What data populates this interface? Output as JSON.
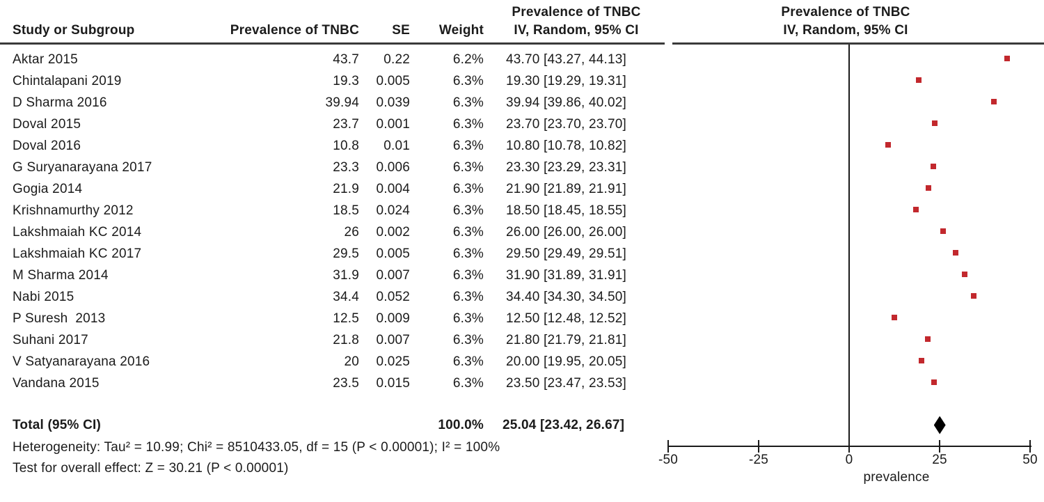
{
  "table": {
    "headers": {
      "study": "Study or Subgroup",
      "prevalence": "Prevalence of TNBC",
      "se": "SE",
      "weight": "Weight",
      "ci_line1": "Prevalence of TNBC",
      "ci_line2": "IV, Random, 95% CI"
    },
    "rows": [
      {
        "study": "Aktar 2015",
        "prevalence": "43.7",
        "se": "0.22",
        "weight": "6.2%",
        "ci": "43.70 [43.27, 44.13]"
      },
      {
        "study": "Chintalapani 2019",
        "prevalence": "19.3",
        "se": "0.005",
        "weight": "6.3%",
        "ci": "19.30 [19.29, 19.31]"
      },
      {
        "study": "D Sharma 2016",
        "prevalence": "39.94",
        "se": "0.039",
        "weight": "6.3%",
        "ci": "39.94 [39.86, 40.02]"
      },
      {
        "study": "Doval 2015",
        "prevalence": "23.7",
        "se": "0.001",
        "weight": "6.3%",
        "ci": "23.70 [23.70, 23.70]"
      },
      {
        "study": "Doval 2016",
        "prevalence": "10.8",
        "se": "0.01",
        "weight": "6.3%",
        "ci": "10.80 [10.78, 10.82]"
      },
      {
        "study": "G Suryanarayana 2017",
        "prevalence": "23.3",
        "se": "0.006",
        "weight": "6.3%",
        "ci": "23.30 [23.29, 23.31]"
      },
      {
        "study": "Gogia 2014",
        "prevalence": "21.9",
        "se": "0.004",
        "weight": "6.3%",
        "ci": "21.90 [21.89, 21.91]"
      },
      {
        "study": "Krishnamurthy 2012",
        "prevalence": "18.5",
        "se": "0.024",
        "weight": "6.3%",
        "ci": "18.50 [18.45, 18.55]"
      },
      {
        "study": "Lakshmaiah KC 2014",
        "prevalence": "26",
        "se": "0.002",
        "weight": "6.3%",
        "ci": "26.00 [26.00, 26.00]"
      },
      {
        "study": "Lakshmaiah KC 2017",
        "prevalence": "29.5",
        "se": "0.005",
        "weight": "6.3%",
        "ci": "29.50 [29.49, 29.51]"
      },
      {
        "study": "M Sharma 2014",
        "prevalence": "31.9",
        "se": "0.007",
        "weight": "6.3%",
        "ci": "31.90 [31.89, 31.91]"
      },
      {
        "study": "Nabi 2015",
        "prevalence": "34.4",
        "se": "0.052",
        "weight": "6.3%",
        "ci": "34.40 [34.30, 34.50]"
      },
      {
        "study": "P Suresh  2013",
        "prevalence": "12.5",
        "se": "0.009",
        "weight": "6.3%",
        "ci": "12.50 [12.48, 12.52]"
      },
      {
        "study": "Suhani 2017",
        "prevalence": "21.8",
        "se": "0.007",
        "weight": "6.3%",
        "ci": "21.80 [21.79, 21.81]"
      },
      {
        "study": "V Satyanarayana 2016",
        "prevalence": "20",
        "se": "0.025",
        "weight": "6.3%",
        "ci": "20.00 [19.95, 20.05]"
      },
      {
        "study": "Vandana 2015",
        "prevalence": "23.5",
        "se": "0.015",
        "weight": "6.3%",
        "ci": "23.50 [23.47, 23.53]"
      }
    ],
    "total": {
      "label": "Total (95% CI)",
      "weight": "100.0%",
      "ci": "25.04 [23.42, 26.67]"
    },
    "footnotes": {
      "heterogeneity": "Heterogeneity: Tau² = 10.99; Chi² = 8510433.05, df = 15 (P < 0.00001); I² = 100%",
      "overall_effect": "Test for overall effect: Z = 30.21 (P < 0.00001)"
    }
  },
  "plot": {
    "header_line1": "Prevalence of TNBC",
    "header_line2": "IV, Random, 95% CI"
  },
  "chart_data": {
    "type": "scatter",
    "subtype": "forest-plot",
    "xlabel": "prevalence",
    "xlim": [
      -50,
      50
    ],
    "x_ticks": [
      {
        "label": "-50",
        "value": -50
      },
      {
        "label": "-25",
        "value": -25
      },
      {
        "label": "0",
        "value": 0
      },
      {
        "label": "25",
        "value": 25
      },
      {
        "label": "50",
        "value": 50
      }
    ],
    "grid": false,
    "points": [
      {
        "study": "Aktar 2015",
        "value": 43.7,
        "ci_low": 43.27,
        "ci_high": 44.13
      },
      {
        "study": "Chintalapani 2019",
        "value": 19.3,
        "ci_low": 19.29,
        "ci_high": 19.31
      },
      {
        "study": "D Sharma 2016",
        "value": 39.94,
        "ci_low": 39.86,
        "ci_high": 40.02
      },
      {
        "study": "Doval 2015",
        "value": 23.7,
        "ci_low": 23.7,
        "ci_high": 23.7
      },
      {
        "study": "Doval 2016",
        "value": 10.8,
        "ci_low": 10.78,
        "ci_high": 10.82
      },
      {
        "study": "G Suryanarayana 2017",
        "value": 23.3,
        "ci_low": 23.29,
        "ci_high": 23.31
      },
      {
        "study": "Gogia 2014",
        "value": 21.9,
        "ci_low": 21.89,
        "ci_high": 21.91
      },
      {
        "study": "Krishnamurthy 2012",
        "value": 18.5,
        "ci_low": 18.45,
        "ci_high": 18.55
      },
      {
        "study": "Lakshmaiah KC 2014",
        "value": 26,
        "ci_low": 26,
        "ci_high": 26
      },
      {
        "study": "Lakshmaiah KC 2017",
        "value": 29.5,
        "ci_low": 29.49,
        "ci_high": 29.51
      },
      {
        "study": "M Sharma 2014",
        "value": 31.9,
        "ci_low": 31.89,
        "ci_high": 31.91
      },
      {
        "study": "Nabi 2015",
        "value": 34.4,
        "ci_low": 34.3,
        "ci_high": 34.5
      },
      {
        "study": "P Suresh  2013",
        "value": 12.5,
        "ci_low": 12.48,
        "ci_high": 12.52
      },
      {
        "study": "Suhani 2017",
        "value": 21.8,
        "ci_low": 21.79,
        "ci_high": 21.81
      },
      {
        "study": "V Satyanarayana 2016",
        "value": 20,
        "ci_low": 19.95,
        "ci_high": 20.05
      },
      {
        "study": "Vandana 2015",
        "value": 23.5,
        "ci_low": 23.47,
        "ci_high": 23.53
      }
    ],
    "diamond": {
      "label": "Total (95% CI)",
      "value": 25.04,
      "ci_low": 23.42,
      "ci_high": 26.67
    }
  },
  "colors": {
    "marker": "#c2282d",
    "diamond": "#000000",
    "axis": "#1a1a1a"
  }
}
